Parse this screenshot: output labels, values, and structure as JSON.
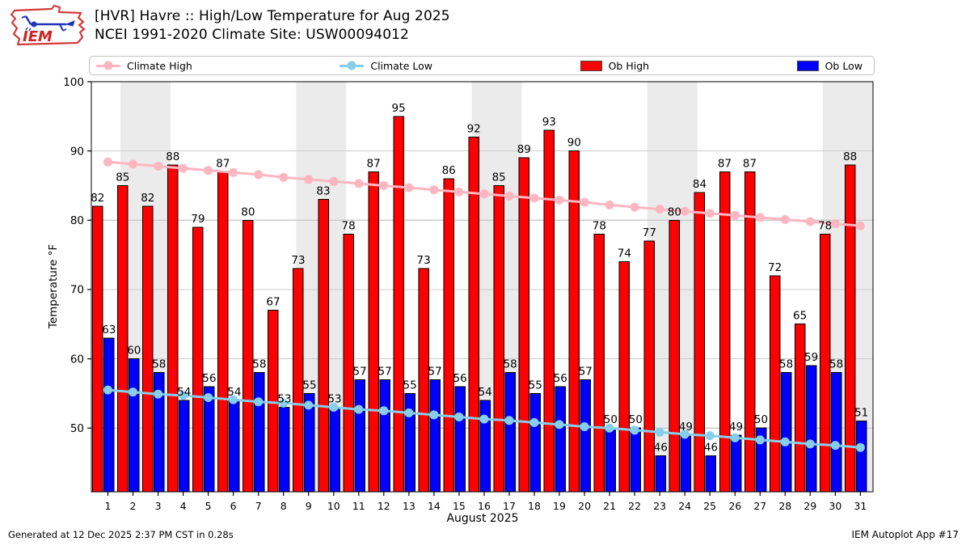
{
  "header": {
    "title_line1": "[HVR] Havre :: High/Low Temperature for Aug 2025",
    "title_line2": "NCEI 1991-2020 Climate Site: USW00094012",
    "logo_text": "IEM"
  },
  "legend": {
    "items": [
      {
        "label": "Climate High",
        "type": "line",
        "color": "#ffb6c1"
      },
      {
        "label": "Climate Low",
        "type": "line",
        "color": "#87ceeb"
      },
      {
        "label": "Ob High",
        "type": "patch",
        "color": "#ff0000"
      },
      {
        "label": "Ob Low",
        "type": "patch",
        "color": "#0000ff"
      }
    ]
  },
  "chart_data": {
    "type": "bar",
    "x": [
      1,
      2,
      3,
      4,
      5,
      6,
      7,
      8,
      9,
      10,
      11,
      12,
      13,
      14,
      15,
      16,
      17,
      18,
      19,
      20,
      21,
      22,
      23,
      24,
      25,
      26,
      27,
      28,
      29,
      30,
      31
    ],
    "series": [
      {
        "name": "Ob High",
        "type": "bar",
        "color": "#ff0000",
        "values": [
          82,
          85,
          82,
          88,
          79,
          87,
          80,
          67,
          73,
          83,
          78,
          87,
          95,
          73,
          86,
          92,
          85,
          89,
          93,
          90,
          78,
          74,
          77,
          80,
          84,
          87,
          87,
          72,
          65,
          78,
          88
        ]
      },
      {
        "name": "Ob Low",
        "type": "bar",
        "color": "#0000ff",
        "values": [
          63,
          60,
          58,
          54,
          56,
          54,
          58,
          53,
          55,
          53,
          57,
          57,
          55,
          57,
          56,
          54,
          58,
          55,
          56,
          57,
          50,
          50,
          46,
          49,
          46,
          49,
          50,
          58,
          59,
          58,
          51
        ]
      },
      {
        "name": "Climate High",
        "type": "line",
        "color": "#ffb6c1",
        "values": [
          88.4,
          88.1,
          87.8,
          87.5,
          87.2,
          86.9,
          86.6,
          86.2,
          85.9,
          85.6,
          85.3,
          85.0,
          84.7,
          84.4,
          84.1,
          83.8,
          83.5,
          83.2,
          82.9,
          82.6,
          82.2,
          81.9,
          81.6,
          81.3,
          81.0,
          80.7,
          80.4,
          80.1,
          79.8,
          79.5,
          79.2
        ]
      },
      {
        "name": "Climate Low",
        "type": "line",
        "color": "#87ceeb",
        "values": [
          55.5,
          55.2,
          54.9,
          54.7,
          54.4,
          54.1,
          53.8,
          53.6,
          53.3,
          53.0,
          52.7,
          52.5,
          52.2,
          51.9,
          51.6,
          51.3,
          51.1,
          50.8,
          50.5,
          50.2,
          50.0,
          49.7,
          49.4,
          49.1,
          48.9,
          48.6,
          48.3,
          48.0,
          47.7,
          47.5,
          47.2
        ]
      }
    ],
    "title": "[HVR] Havre :: High/Low Temperature for Aug 2025",
    "subtitle": "NCEI 1991-2020 Climate Site: USW00094012",
    "xlabel": "August 2025",
    "ylabel": "Temperature °F",
    "ylim": [
      40.8,
      100
    ],
    "yticks": [
      50,
      60,
      70,
      80,
      90,
      100
    ],
    "grid": true,
    "legend_position": "top",
    "weekend_bands": [
      [
        2,
        3
      ],
      [
        9,
        10
      ],
      [
        16,
        17
      ],
      [
        23,
        24
      ],
      [
        30,
        31
      ]
    ],
    "band_color": "#ebebeb",
    "grid_color": "#cccccc"
  },
  "footer": {
    "left": "Generated at 12 Dec 2025 2:37 PM CST in 0.28s",
    "right": "IEM Autoplot App #17"
  }
}
